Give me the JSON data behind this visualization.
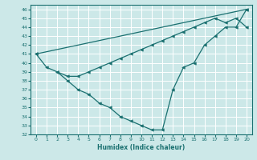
{
  "xlabel": "Humidex (Indice chaleur)",
  "bg_color": "#cce8e8",
  "grid_color": "#ffffff",
  "line_color": "#1a7070",
  "xlim": [
    -0.5,
    20.5
  ],
  "ylim": [
    32,
    46.5
  ],
  "xticks": [
    0,
    1,
    2,
    3,
    4,
    5,
    6,
    7,
    8,
    9,
    10,
    11,
    12,
    13,
    14,
    15,
    16,
    17,
    18,
    19,
    20
  ],
  "yticks": [
    32,
    33,
    34,
    35,
    36,
    37,
    38,
    39,
    40,
    41,
    42,
    43,
    44,
    45,
    46
  ],
  "line1_x": [
    0,
    20
  ],
  "line1_y": [
    41,
    46
  ],
  "line2_x": [
    0,
    1,
    2,
    3,
    4,
    5,
    6,
    7,
    8,
    9,
    10,
    11,
    12,
    13,
    14,
    15,
    16,
    17,
    18,
    19,
    20
  ],
  "line2_y": [
    41,
    39.5,
    39,
    38,
    37,
    36.5,
    35.5,
    35,
    34,
    33.5,
    33,
    32.5,
    32.5,
    37,
    39.5,
    40,
    42,
    43,
    44,
    44,
    46
  ],
  "line3_x": [
    2,
    3,
    4,
    5,
    6,
    7,
    8,
    9,
    10,
    11,
    12,
    13,
    14,
    15,
    16,
    17,
    18,
    19,
    20
  ],
  "line3_y": [
    39,
    38.5,
    38.5,
    39,
    39.5,
    40,
    40.5,
    41,
    41.5,
    42,
    42.5,
    43,
    43.5,
    44,
    44.5,
    45,
    44.5,
    45,
    44
  ]
}
